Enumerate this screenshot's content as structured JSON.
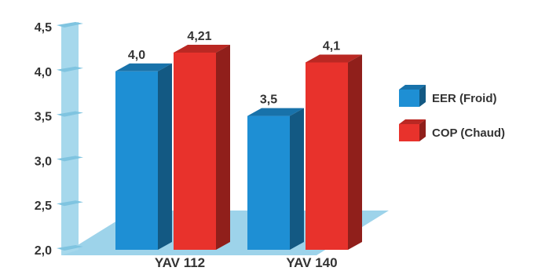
{
  "chart_data": {
    "type": "bar",
    "categories": [
      "YAV 112",
      "YAV 140"
    ],
    "series": [
      {
        "name": "EER   (Froid)",
        "values": [
          4.0,
          3.5
        ],
        "labels": [
          "4,0",
          "3,5"
        ],
        "color": "#1e8fd4"
      },
      {
        "name": "COP   (Chaud)",
        "values": [
          4.21,
          4.1
        ],
        "labels": [
          "4,21",
          "4,1"
        ],
        "color": "#e8322c"
      }
    ],
    "yticks": [
      "2,0",
      "2,5",
      "3,0",
      "3,5",
      "4,0",
      "4,5"
    ],
    "ylim": [
      2.0,
      4.5
    ],
    "legend_position": "right",
    "grid": false
  }
}
